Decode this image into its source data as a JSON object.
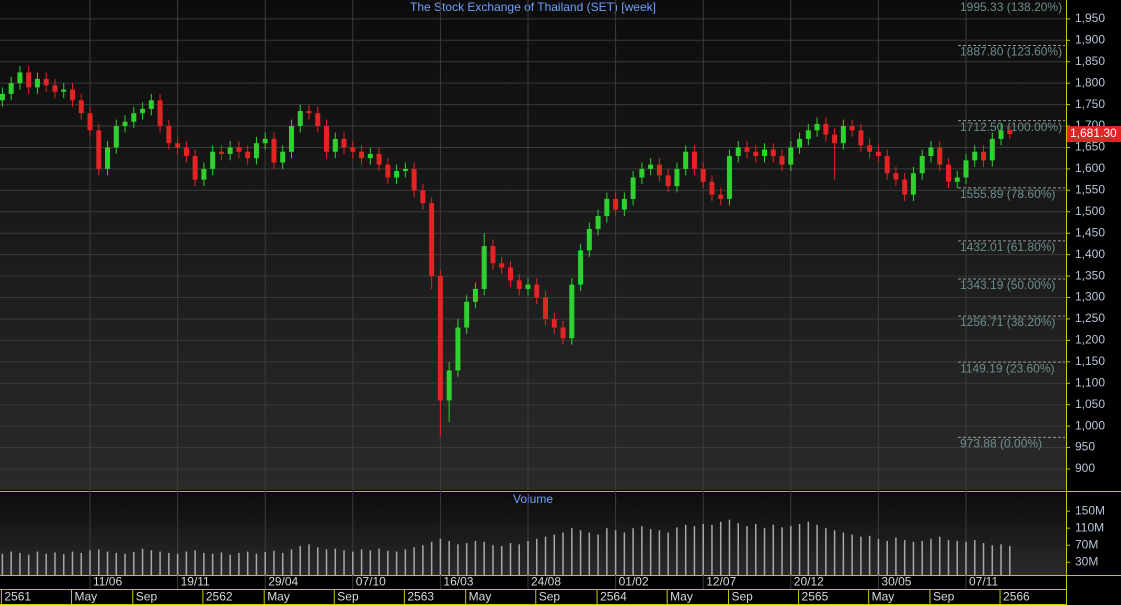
{
  "chart_data": [
    {
      "type": "candlestick",
      "title": "The Stock Exchange of Thailand (SET) [week]",
      "up_color": "#2fd12f",
      "down_color": "#e32424",
      "categories": [
        null,
        null,
        null,
        null,
        null,
        null,
        null,
        null,
        null,
        null,
        "11/06",
        null,
        null,
        null,
        null,
        null,
        null,
        null,
        null,
        null,
        "19/11",
        null,
        null,
        null,
        null,
        null,
        null,
        null,
        null,
        null,
        "29/04",
        null,
        null,
        null,
        null,
        null,
        null,
        null,
        null,
        null,
        "07/10",
        null,
        null,
        null,
        null,
        null,
        null,
        null,
        null,
        null,
        "16/03",
        null,
        null,
        null,
        null,
        null,
        null,
        null,
        null,
        null,
        "24/08",
        null,
        null,
        null,
        null,
        null,
        null,
        null,
        null,
        null,
        "01/02",
        null,
        null,
        null,
        null,
        null,
        null,
        null,
        null,
        null,
        "12/07",
        null,
        null,
        null,
        null,
        null,
        null,
        null,
        null,
        null,
        "20/12",
        null,
        null,
        null,
        null,
        null,
        null,
        null,
        null,
        null,
        "30/05",
        null,
        null,
        null,
        null,
        null,
        null,
        null,
        null,
        null,
        "07/11",
        null,
        null,
        null,
        null,
        null
      ],
      "categories2": [
        "2561",
        null,
        null,
        null,
        null,
        null,
        null,
        null,
        "May",
        null,
        null,
        null,
        null,
        null,
        null,
        "Sep",
        null,
        null,
        null,
        null,
        null,
        null,
        null,
        "2562",
        null,
        null,
        null,
        null,
        null,
        null,
        "May",
        null,
        null,
        null,
        null,
        null,
        null,
        null,
        "Sep",
        null,
        null,
        null,
        null,
        null,
        null,
        null,
        "2563",
        null,
        null,
        null,
        null,
        null,
        null,
        "May",
        null,
        null,
        null,
        null,
        null,
        null,
        null,
        "Sep",
        null,
        null,
        null,
        null,
        null,
        null,
        "2564",
        null,
        null,
        null,
        null,
        null,
        null,
        null,
        "May",
        null,
        null,
        null,
        null,
        null,
        null,
        "Sep",
        null,
        null,
        null,
        null,
        null,
        null,
        null,
        "2565",
        null,
        null,
        null,
        null,
        null,
        null,
        null,
        "May",
        null,
        null,
        null,
        null,
        null,
        null,
        "Sep",
        null,
        null,
        null,
        null,
        null,
        null,
        null,
        "2566",
        null
      ],
      "open": [
        1760,
        1775,
        1800,
        1825,
        1790,
        1810,
        1795,
        1780,
        1785,
        1760,
        1730,
        1690,
        1600,
        1650,
        1700,
        1710,
        1730,
        1740,
        1760,
        1700,
        1660,
        1650,
        1630,
        1575,
        1600,
        1640,
        1635,
        1650,
        1640,
        1625,
        1660,
        1670,
        1615,
        1640,
        1700,
        1735,
        1730,
        1700,
        1640,
        1670,
        1650,
        1640,
        1625,
        1635,
        1610,
        1580,
        1595,
        1600,
        1550,
        1520,
        1350,
        1060,
        1130,
        1230,
        1290,
        1320,
        1420,
        1380,
        1370,
        1340,
        1320,
        1330,
        1300,
        1250,
        1230,
        1205,
        1330,
        1410,
        1460,
        1490,
        1530,
        1505,
        1530,
        1580,
        1600,
        1610,
        1585,
        1560,
        1600,
        1640,
        1600,
        1570,
        1540,
        1530,
        1630,
        1650,
        1640,
        1630,
        1645,
        1630,
        1610,
        1650,
        1670,
        1690,
        1705,
        1680,
        1660,
        1700,
        1690,
        1655,
        1640,
        1630,
        1590,
        1575,
        1540,
        1590,
        1630,
        1650,
        1610,
        1570,
        1580,
        1620,
        1640,
        1620,
        1670,
        1690
      ],
      "high": [
        1790,
        1815,
        1840,
        1840,
        1825,
        1825,
        1810,
        1800,
        1800,
        1775,
        1745,
        1705,
        1665,
        1715,
        1725,
        1745,
        1755,
        1775,
        1775,
        1715,
        1675,
        1665,
        1645,
        1615,
        1655,
        1655,
        1665,
        1665,
        1655,
        1675,
        1685,
        1685,
        1655,
        1715,
        1750,
        1750,
        1745,
        1715,
        1685,
        1685,
        1665,
        1655,
        1650,
        1650,
        1625,
        1610,
        1615,
        1615,
        1565,
        1535,
        1365,
        1150,
        1250,
        1305,
        1335,
        1450,
        1435,
        1395,
        1385,
        1355,
        1345,
        1345,
        1315,
        1265,
        1245,
        1345,
        1425,
        1475,
        1505,
        1545,
        1545,
        1545,
        1595,
        1615,
        1625,
        1625,
        1600,
        1615,
        1655,
        1655,
        1615,
        1585,
        1555,
        1645,
        1665,
        1665,
        1655,
        1660,
        1660,
        1645,
        1665,
        1685,
        1705,
        1720,
        1720,
        1695,
        1715,
        1715,
        1705,
        1670,
        1655,
        1645,
        1605,
        1590,
        1605,
        1645,
        1665,
        1665,
        1625,
        1595,
        1635,
        1655,
        1655,
        1685,
        1705,
        1700
      ],
      "low": [
        1745,
        1760,
        1785,
        1775,
        1775,
        1780,
        1765,
        1765,
        1745,
        1715,
        1675,
        1585,
        1585,
        1635,
        1685,
        1695,
        1715,
        1725,
        1685,
        1645,
        1635,
        1615,
        1560,
        1560,
        1585,
        1620,
        1620,
        1625,
        1610,
        1610,
        1645,
        1600,
        1600,
        1625,
        1685,
        1715,
        1685,
        1625,
        1625,
        1635,
        1625,
        1610,
        1610,
        1595,
        1565,
        1565,
        1580,
        1535,
        1505,
        1320,
        975,
        1010,
        1115,
        1215,
        1275,
        1305,
        1365,
        1355,
        1325,
        1305,
        1305,
        1285,
        1235,
        1215,
        1190,
        1190,
        1315,
        1395,
        1445,
        1475,
        1490,
        1490,
        1515,
        1565,
        1585,
        1570,
        1545,
        1545,
        1585,
        1585,
        1555,
        1525,
        1515,
        1515,
        1615,
        1625,
        1615,
        1615,
        1615,
        1595,
        1595,
        1635,
        1655,
        1675,
        1665,
        1575,
        1645,
        1675,
        1640,
        1625,
        1615,
        1575,
        1560,
        1525,
        1525,
        1575,
        1615,
        1595,
        1555,
        1555,
        1565,
        1605,
        1605,
        1605,
        1655,
        1670
      ],
      "close": [
        1775,
        1800,
        1825,
        1790,
        1810,
        1795,
        1780,
        1785,
        1760,
        1730,
        1690,
        1600,
        1650,
        1700,
        1710,
        1730,
        1740,
        1760,
        1700,
        1660,
        1650,
        1630,
        1575,
        1600,
        1640,
        1635,
        1650,
        1640,
        1625,
        1660,
        1670,
        1615,
        1640,
        1700,
        1735,
        1730,
        1700,
        1640,
        1670,
        1650,
        1640,
        1625,
        1635,
        1610,
        1580,
        1595,
        1600,
        1550,
        1520,
        1350,
        1060,
        1130,
        1230,
        1290,
        1320,
        1420,
        1380,
        1370,
        1340,
        1320,
        1330,
        1300,
        1250,
        1230,
        1205,
        1330,
        1410,
        1460,
        1490,
        1530,
        1505,
        1530,
        1580,
        1600,
        1610,
        1585,
        1560,
        1600,
        1640,
        1600,
        1570,
        1540,
        1530,
        1630,
        1650,
        1640,
        1630,
        1645,
        1630,
        1610,
        1650,
        1670,
        1690,
        1705,
        1680,
        1660,
        1700,
        1690,
        1655,
        1640,
        1630,
        1590,
        1575,
        1540,
        1590,
        1630,
        1650,
        1610,
        1570,
        1580,
        1620,
        1640,
        1620,
        1670,
        1690,
        1681.3
      ],
      "ylim": [
        851,
        1994
      ],
      "yticks": [
        900,
        950,
        {
          "value": 1000,
          "label": "1,000"
        },
        {
          "value": 1050,
          "label": "1,050"
        },
        {
          "value": 1100,
          "label": "1,100"
        },
        {
          "value": 1150,
          "label": "1,150"
        },
        {
          "value": 1200,
          "label": "1,200"
        },
        {
          "value": 1250,
          "label": "1,250"
        },
        {
          "value": 1300,
          "label": "1,300"
        },
        {
          "value": 1350,
          "label": "1,350"
        },
        {
          "value": 1400,
          "label": "1,400"
        },
        {
          "value": 1450,
          "label": "1,450"
        },
        {
          "value": 1500,
          "label": "1,500"
        },
        {
          "value": 1550,
          "label": "1,550"
        },
        {
          "value": 1600,
          "label": "1,600"
        },
        {
          "value": 1650,
          "label": "1,650"
        },
        {
          "value": 1700,
          "label": "1,700"
        },
        {
          "value": 1750,
          "label": "1,750"
        },
        {
          "value": 1800,
          "label": "1,800"
        },
        {
          "value": 1850,
          "label": "1,850"
        },
        {
          "value": 1900,
          "label": "1,900"
        },
        {
          "value": 1950,
          "label": "1,950"
        }
      ],
      "grid": true,
      "annotations": [
        {
          "value": 1995.33,
          "label": "1995.33 (138.20%)"
        },
        {
          "value": 1887.8,
          "label": "1887.80 (123.60%)"
        },
        {
          "value": 1712.5,
          "label": "1712.50 (100.00%)"
        },
        {
          "value": 1555.89,
          "label": "1555.89 (78.60%)"
        },
        {
          "value": 1432.01,
          "label": "1432.01 (61.80%)"
        },
        {
          "value": 1343.19,
          "label": "1343.19 (50.00%)"
        },
        {
          "value": 1256.71,
          "label": "1256.71 (38.20%)"
        },
        {
          "value": 1149.19,
          "label": "1149.19 (23.60%)"
        },
        {
          "value": 973.88,
          "label": "973.88 (0.00%)"
        }
      ],
      "last_price": {
        "value": 1681.3,
        "label": "1,681.30"
      }
    },
    {
      "type": "bar",
      "title": "Volume",
      "color": "#a8a8a8",
      "values": [
        50,
        55,
        52,
        48,
        55,
        50,
        53,
        49,
        55,
        52,
        58,
        60,
        55,
        52,
        50,
        54,
        62,
        58,
        55,
        52,
        50,
        55,
        58,
        52,
        50,
        53,
        48,
        52,
        55,
        50,
        54,
        57,
        52,
        60,
        68,
        72,
        65,
        60,
        62,
        58,
        55,
        60,
        58,
        62,
        57,
        55,
        60,
        65,
        70,
        78,
        85,
        80,
        72,
        75,
        80,
        78,
        70,
        68,
        75,
        72,
        80,
        85,
        90,
        95,
        100,
        110,
        105,
        100,
        95,
        110,
        105,
        100,
        110,
        115,
        108,
        105,
        100,
        112,
        118,
        115,
        120,
        118,
        125,
        130,
        122,
        115,
        120,
        110,
        118,
        112,
        115,
        120,
        125,
        118,
        110,
        105,
        100,
        95,
        90,
        92,
        85,
        80,
        88,
        82,
        78,
        80,
        85,
        90,
        82,
        80,
        78,
        82,
        75,
        70,
        72,
        68
      ],
      "ylim": [
        0,
        195
      ],
      "yticks": [
        {
          "value": 30,
          "label": "30M"
        },
        {
          "value": 70,
          "label": "70M"
        },
        {
          "value": 110,
          "label": "110M"
        },
        {
          "value": 150,
          "label": "150M"
        }
      ]
    }
  ]
}
